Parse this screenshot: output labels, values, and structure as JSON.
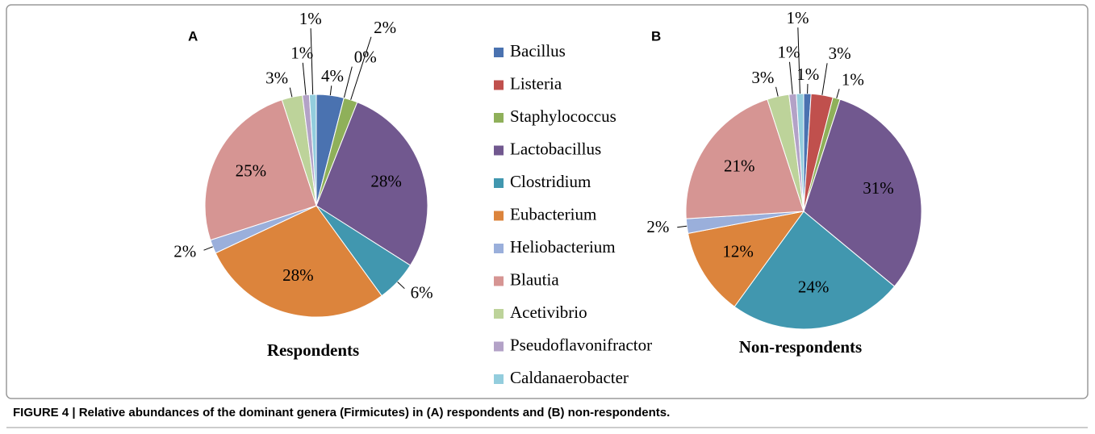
{
  "panel_labels": [
    "A",
    "B"
  ],
  "caption": "FIGURE 4 | Relative abundances of the dominant genera (Firmicutes) in (A) respondents and (B) non-respondents.",
  "chart_data": [
    {
      "type": "pie",
      "title": "Respondents",
      "categories": [
        "Bacillus",
        "Listeria",
        "Staphylococcus",
        "Lactobacillus",
        "Clostridium",
        "Eubacterium",
        "Heliobacterium",
        "Blautia",
        "Acetivibrio",
        "Pseudoflavonifractor",
        "Caldanaerobacter"
      ],
      "values": [
        4,
        0,
        2,
        28,
        6,
        28,
        2,
        25,
        3,
        1,
        1
      ],
      "value_labels": [
        "4%",
        "0%",
        "2%",
        "28%",
        "6%",
        "28%",
        "2%",
        "25%",
        "3%",
        "1%",
        "1%"
      ],
      "colors": [
        "#4a72b0",
        "#c0504d",
        "#8fb05a",
        "#71588f",
        "#4197af",
        "#dc843c",
        "#9aafdb",
        "#d69593",
        "#bdd39a",
        "#b3a2c7",
        "#93cddd"
      ],
      "legend": true
    },
    {
      "type": "pie",
      "title": "Non-respondents",
      "categories": [
        "Bacillus",
        "Listeria",
        "Staphylococcus",
        "Lactobacillus",
        "Clostridium",
        "Eubacterium",
        "Heliobacterium",
        "Blautia",
        "Acetivibrio",
        "Pseudoflavonifractor",
        "Caldanaerobacter"
      ],
      "values": [
        1,
        3,
        1,
        31,
        24,
        12,
        2,
        21,
        3,
        1,
        1
      ],
      "value_labels": [
        "1%",
        "3%",
        "1%",
        "31%",
        "24%",
        "12%",
        "2%",
        "21%",
        "3%",
        "1%",
        "1%"
      ],
      "colors": [
        "#4a72b0",
        "#c0504d",
        "#8fb05a",
        "#71588f",
        "#4197af",
        "#dc843c",
        "#9aafdb",
        "#d69593",
        "#bdd39a",
        "#b3a2c7",
        "#93cddd"
      ],
      "legend": false
    }
  ]
}
